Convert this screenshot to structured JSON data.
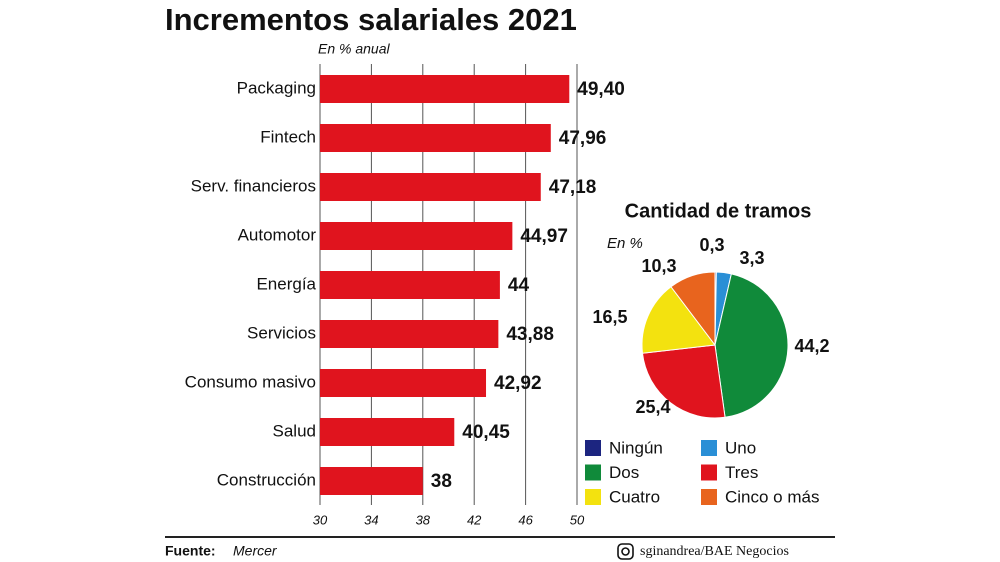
{
  "title": "Incrementos salariales 2021",
  "source": {
    "label": "Fuente:",
    "text": "Mercer"
  },
  "credit": "sginandrea/BAE Negocios",
  "chart_data": [
    {
      "type": "bar",
      "subtitle": "En % anual",
      "categories": [
        "Packaging",
        "Fintech",
        "Serv. financieros",
        "Automotor",
        "Energía",
        "Servicios",
        "Consumo masivo",
        "Salud",
        "Construcción"
      ],
      "values": [
        49.4,
        47.96,
        47.18,
        44.97,
        44,
        43.88,
        42.92,
        40.45,
        38
      ],
      "value_labels": [
        "49,40",
        "47,96",
        "47,18",
        "44,97",
        "44",
        "43,88",
        "42,92",
        "40,45",
        "38"
      ],
      "color": "#e0141e",
      "xlim": [
        30,
        50
      ],
      "xticks": [
        30,
        34,
        38,
        42,
        46,
        50
      ],
      "grid": true
    },
    {
      "type": "pie",
      "title": "Cantidad de tramos",
      "subtitle": "En %",
      "categories": [
        "Ningún",
        "Uno",
        "Dos",
        "Tres",
        "Cuatro",
        "Cinco o más"
      ],
      "values": [
        0.3,
        3.3,
        44.2,
        25.4,
        16.5,
        10.3
      ],
      "value_labels": [
        "0,3",
        "3,3",
        "44,2",
        "25,4",
        "16,5",
        "10,3"
      ],
      "colors": [
        "#1c2580",
        "#2a8fd6",
        "#108a3a",
        "#e0141e",
        "#f3e20f",
        "#e8641e"
      ]
    }
  ]
}
